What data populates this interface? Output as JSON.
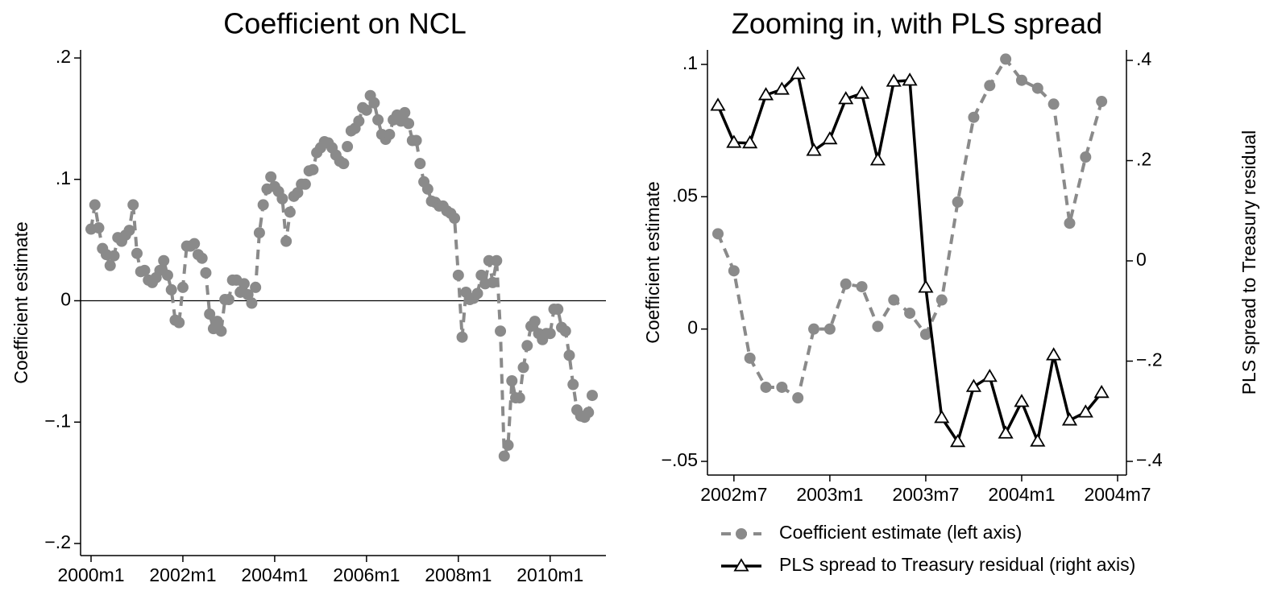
{
  "chart_data": [
    {
      "type": "line",
      "title": "Coefficient on NCL",
      "ylabel": "Coefficient estimate",
      "color": "#8a8a8a",
      "dashed": true,
      "marker": "circle",
      "x": [
        "2000m1",
        "2000m2",
        "2000m3",
        "2000m4",
        "2000m5",
        "2000m6",
        "2000m7",
        "2000m8",
        "2000m9",
        "2000m10",
        "2000m11",
        "2000m12",
        "2001m1",
        "2001m2",
        "2001m3",
        "2001m4",
        "2001m5",
        "2001m6",
        "2001m7",
        "2001m8",
        "2001m9",
        "2001m10",
        "2001m11",
        "2001m12",
        "2002m1",
        "2002m2",
        "2002m3",
        "2002m4",
        "2002m5",
        "2002m6",
        "2002m7",
        "2002m8",
        "2002m9",
        "2002m10",
        "2002m11",
        "2002m12",
        "2003m1",
        "2003m2",
        "2003m3",
        "2003m4",
        "2003m5",
        "2003m6",
        "2003m7",
        "2003m8",
        "2003m9",
        "2003m10",
        "2003m11",
        "2003m12",
        "2004m1",
        "2004m2",
        "2004m3",
        "2004m4",
        "2004m5",
        "2004m6",
        "2004m7",
        "2004m8",
        "2004m9",
        "2004m10",
        "2004m11",
        "2004m12",
        "2005m1",
        "2005m2",
        "2005m3",
        "2005m4",
        "2005m5",
        "2005m6",
        "2005m7",
        "2005m8",
        "2005m9",
        "2005m10",
        "2005m11",
        "2005m12",
        "2006m1",
        "2006m2",
        "2006m3",
        "2006m4",
        "2006m5",
        "2006m6",
        "2006m7",
        "2006m8",
        "2006m9",
        "2006m10",
        "2006m11",
        "2006m12",
        "2007m1",
        "2007m2",
        "2007m3",
        "2007m4",
        "2007m5",
        "2007m6",
        "2007m7",
        "2007m8",
        "2007m9",
        "2007m10",
        "2007m11",
        "2007m12",
        "2008m1",
        "2008m2",
        "2008m3",
        "2008m4",
        "2008m5",
        "2008m6",
        "2008m7",
        "2008m8",
        "2008m9",
        "2008m10",
        "2008m11",
        "2008m12",
        "2009m1",
        "2009m2",
        "2009m3",
        "2009m4",
        "2009m5",
        "2009m6",
        "2009m7",
        "2009m8",
        "2009m9",
        "2009m10",
        "2009m11",
        "2009m12",
        "2010m1",
        "2010m2",
        "2010m3",
        "2010m4",
        "2010m5",
        "2010m6",
        "2010m7",
        "2010m8",
        "2010m9",
        "2010m10",
        "2010m11",
        "2010m12"
      ],
      "values": [
        0.059,
        0.079,
        0.06,
        0.043,
        0.038,
        0.029,
        0.037,
        0.052,
        0.049,
        0.054,
        0.058,
        0.079,
        0.039,
        0.024,
        0.025,
        0.017,
        0.015,
        0.019,
        0.025,
        0.033,
        0.021,
        0.009,
        -0.016,
        -0.018,
        0.011,
        0.045,
        0.045,
        0.047,
        0.038,
        0.035,
        0.023,
        -0.011,
        -0.023,
        -0.017,
        -0.025,
        0.001,
        0.001,
        0.017,
        0.017,
        0.007,
        0.014,
        0.005,
        -0.002,
        0.011,
        0.056,
        0.079,
        0.092,
        0.102,
        0.094,
        0.09,
        0.084,
        0.049,
        0.073,
        0.086,
        0.089,
        0.096,
        0.096,
        0.107,
        0.108,
        0.122,
        0.126,
        0.131,
        0.13,
        0.126,
        0.12,
        0.115,
        0.113,
        0.127,
        0.14,
        0.142,
        0.148,
        0.159,
        0.157,
        0.169,
        0.163,
        0.149,
        0.137,
        0.133,
        0.137,
        0.149,
        0.153,
        0.148,
        0.155,
        0.146,
        0.132,
        0.132,
        0.113,
        0.098,
        0.092,
        0.082,
        0.081,
        0.078,
        0.078,
        0.074,
        0.072,
        0.068,
        0.021,
        -0.03,
        0.007,
        0.001,
        0.002,
        0.006,
        0.021,
        0.014,
        0.033,
        0.015,
        0.033,
        -0.025,
        -0.128,
        -0.119,
        -0.066,
        -0.08,
        -0.08,
        -0.055,
        -0.037,
        -0.021,
        -0.017,
        -0.027,
        -0.032,
        -0.027,
        -0.027,
        -0.007,
        -0.007,
        -0.022,
        -0.025,
        -0.045,
        -0.069,
        -0.09,
        -0.095,
        -0.096,
        -0.092,
        -0.078
      ],
      "xlim": [
        "2000m1",
        "2010m12"
      ],
      "xticks": [
        "2000m1",
        "2002m1",
        "2004m1",
        "2006m1",
        "2008m1",
        "2010m1"
      ],
      "ylim": [
        -0.2,
        0.2
      ],
      "yticks": [
        {
          "value": -0.2,
          "label": "−.2"
        },
        {
          "value": -0.1,
          "label": "−.1"
        },
        0,
        {
          "value": 0.1,
          "label": ".1"
        },
        {
          "value": 0.2,
          "label": ".2"
        }
      ],
      "reference_line": 0
    },
    {
      "type": "line",
      "title": "Zooming in, with PLS spread",
      "ylabel": "Coefficient estimate",
      "y2label": "PLS spread to Treasury residual",
      "x": [
        "2002m6",
        "2002m7",
        "2002m8",
        "2002m9",
        "2002m10",
        "2002m11",
        "2002m12",
        "2003m1",
        "2003m2",
        "2003m3",
        "2003m4",
        "2003m5",
        "2003m6",
        "2003m7",
        "2003m8",
        "2003m9",
        "2003m10",
        "2003m11",
        "2003m12",
        "2004m1",
        "2004m2",
        "2004m3",
        "2004m4",
        "2004m5",
        "2004m6"
      ],
      "series": [
        {
          "name": "Coefficient estimate (left axis)",
          "color": "#8a8a8a",
          "dashed": true,
          "marker": "circle",
          "values": [
            0.036,
            0.022,
            -0.011,
            -0.022,
            -0.022,
            -0.026,
            0,
            0,
            0.017,
            0.016,
            0.001,
            0.011,
            0.006,
            -0.002,
            0.011,
            0.048,
            0.08,
            0.092,
            0.102,
            0.094,
            0.091,
            0.085,
            0.04,
            0.065,
            0.086
          ]
        },
        {
          "name": "PLS spread to Treasury residual (right axis)",
          "color": "#000000",
          "dashed": false,
          "marker": "triangle",
          "axis": "y2",
          "values": [
            0.31,
            0.236,
            0.235,
            0.331,
            0.342,
            0.373,
            0.22,
            0.243,
            0.323,
            0.334,
            0.201,
            0.358,
            0.36,
            -0.053,
            -0.313,
            -0.361,
            -0.251,
            -0.231,
            -0.344,
            -0.281,
            -0.36,
            -0.188,
            -0.318,
            -0.302,
            -0.263
          ]
        }
      ],
      "xlim": [
        "2002m6",
        "2004m7"
      ],
      "xticks": [
        "2002m7",
        "2003m1",
        "2003m7",
        "2004m1",
        "2004m7"
      ],
      "ylim": [
        -0.05,
        0.1
      ],
      "yticks": [
        {
          "value": -0.05,
          "label": "−.05"
        },
        0,
        {
          "value": 0.05,
          "label": ".05"
        },
        {
          "value": 0.1,
          "label": ".1"
        }
      ],
      "y2lim": [
        -0.4,
        0.4
      ],
      "y2ticks": [
        {
          "value": -0.4,
          "label": "−.4"
        },
        {
          "value": -0.2,
          "label": "−.2"
        },
        0,
        {
          "value": 0.2,
          "label": ".2"
        },
        {
          "value": 0.4,
          "label": ".4"
        }
      ],
      "legend": "bottom"
    }
  ]
}
